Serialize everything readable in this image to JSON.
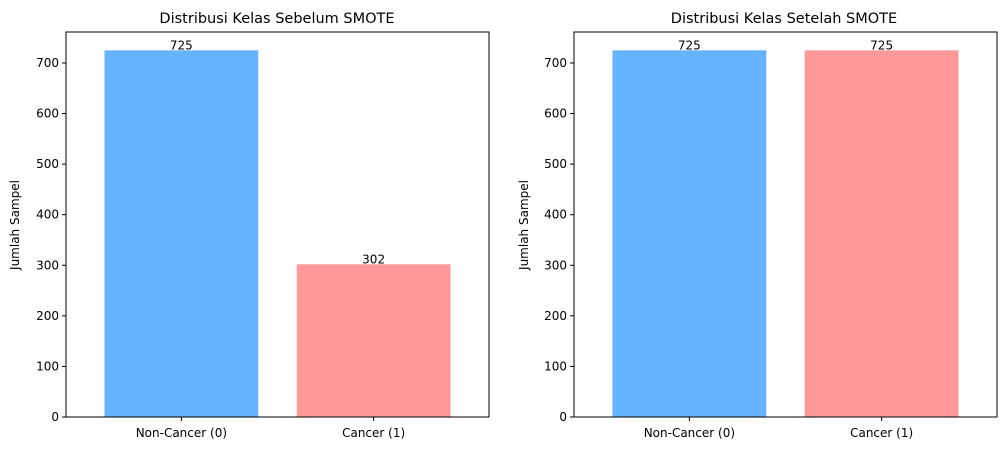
{
  "chart_data": [
    {
      "type": "bar",
      "title": "Distribusi Kelas Sebelum SMOTE",
      "xlabel": "",
      "ylabel": "Jumlah Sampel",
      "categories": [
        "Non-Cancer (0)",
        "Cancer (1)"
      ],
      "values": [
        725,
        302
      ],
      "colors": [
        "#66b3ff",
        "#ff9999"
      ],
      "ylim": [
        0,
        761.25
      ],
      "yticks": [
        0,
        100,
        200,
        300,
        400,
        500,
        600,
        700
      ],
      "grid": false
    },
    {
      "type": "bar",
      "title": "Distribusi Kelas Setelah SMOTE",
      "xlabel": "",
      "ylabel": "Jumlah Sampel",
      "categories": [
        "Non-Cancer (0)",
        "Cancer (1)"
      ],
      "values": [
        725,
        725
      ],
      "colors": [
        "#66b3ff",
        "#ff9999"
      ],
      "ylim": [
        0,
        761.25
      ],
      "yticks": [
        0,
        100,
        200,
        300,
        400,
        500,
        600,
        700
      ],
      "grid": false
    }
  ]
}
